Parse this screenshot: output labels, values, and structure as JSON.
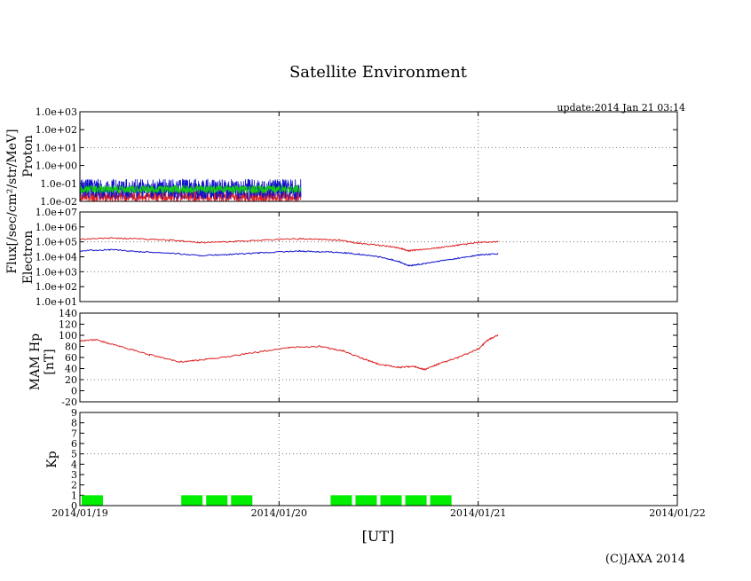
{
  "chart_data": {
    "title": "Satellite Environment",
    "update": "update:2014 Jan 21 03:14",
    "copyright": "(C)JAXA 2014",
    "xlabel": "[UT]",
    "x_ticks": [
      "2014/01/19",
      "2014/01/20",
      "2014/01/21",
      "2014/01/22"
    ],
    "flux_label": "Flux[/sec/cm²/str/MeV]",
    "colors": {
      "red": "#dd2222",
      "blue": "#1111cc",
      "green": "#11cc11",
      "grid": "#777777"
    },
    "panels": [
      {
        "id": "proton",
        "type": "line",
        "ylabel": "Proton",
        "yscale": "log",
        "yticks": [
          "1.0e-02",
          "1.0e-01",
          "1.0e+00",
          "1.0e+01",
          "1.0e+02",
          "1.0e+03"
        ],
        "ylim_exp": [
          -2,
          3
        ],
        "series": [
          {
            "name": "red",
            "color": "#dd2222",
            "note": "noise near 1e-02"
          },
          {
            "name": "blue",
            "color": "#1111cc",
            "note": "noise 1e-02 to 1e-01"
          },
          {
            "name": "green",
            "color": "#11cc11",
            "note": "~5e-02"
          }
        ],
        "x_end_day": 1.11
      },
      {
        "id": "electron",
        "type": "line",
        "ylabel": "Electron",
        "yscale": "log",
        "yticks": [
          "1.0e+01",
          "1.0e+02",
          "1.0e+03",
          "1.0e+04",
          "1.0e+05",
          "1.0e+06",
          "1.0e+07"
        ],
        "ylim_exp": [
          1,
          7
        ],
        "series": [
          {
            "name": "red",
            "color": "#dd2222",
            "x": [
              0.0,
              0.15,
              0.3,
              0.45,
              0.6,
              0.75,
              0.9,
              1.1,
              1.2,
              1.3,
              1.4,
              1.5,
              1.6,
              1.65,
              1.7,
              1.8,
              1.9,
              2.0,
              2.1
            ],
            "y": [
              150000.0,
              180000.0,
              160000.0,
              130000.0,
              90000.0,
              100000.0,
              130000.0,
              160000.0,
              150000.0,
              130000.0,
              80000.0,
              60000.0,
              40000.0,
              25000.0,
              30000.0,
              40000.0,
              60000.0,
              90000.0,
              100000.0
            ]
          },
          {
            "name": "blue",
            "color": "#1111cc",
            "x": [
              0.0,
              0.15,
              0.3,
              0.45,
              0.6,
              0.75,
              0.9,
              1.1,
              1.2,
              1.3,
              1.4,
              1.5,
              1.6,
              1.65,
              1.7,
              1.8,
              1.9,
              2.0,
              2.1
            ],
            "y": [
              25000.0,
              30000.0,
              22000.0,
              18000.0,
              12000.0,
              14000.0,
              18000.0,
              24000.0,
              22000.0,
              20000.0,
              15000.0,
              10000.0,
              5000.0,
              2500.0,
              3000.0,
              5000.0,
              8000.0,
              13000.0,
              16000.0
            ]
          }
        ]
      },
      {
        "id": "mam",
        "type": "line",
        "ylabel": "MAM Hp",
        "ylabel2": "[nT]",
        "yscale": "linear",
        "yticks": [
          "-20",
          "0",
          "20",
          "40",
          "60",
          "80",
          "100",
          "120",
          "140"
        ],
        "ylim": [
          -20,
          140
        ],
        "series": [
          {
            "name": "Hp",
            "color": "#dd2222",
            "x": [
              0.0,
              0.08,
              0.2,
              0.35,
              0.5,
              0.6,
              0.75,
              0.9,
              1.05,
              1.2,
              1.32,
              1.42,
              1.5,
              1.6,
              1.68,
              1.73,
              1.8,
              1.9,
              2.0,
              2.05,
              2.1
            ],
            "y": [
              90,
              92,
              80,
              65,
              52,
              55,
              62,
              70,
              78,
              80,
              72,
              58,
              48,
              42,
              44,
              38,
              48,
              60,
              75,
              92,
              100
            ]
          }
        ]
      },
      {
        "id": "kp",
        "type": "bar",
        "ylabel": "Kp",
        "yscale": "linear",
        "yticks": [
          "0",
          "1",
          "2",
          "3",
          "4",
          "5",
          "6",
          "7",
          "8",
          "9"
        ],
        "ylim": [
          0,
          9
        ],
        "bar_color": "#00ee00",
        "bars": [
          {
            "t": 0.0,
            "v": 1
          },
          {
            "t": 0.5,
            "v": 1
          },
          {
            "t": 0.625,
            "v": 1
          },
          {
            "t": 0.75,
            "v": 1
          },
          {
            "t": 1.25,
            "v": 1
          },
          {
            "t": 1.375,
            "v": 1
          },
          {
            "t": 1.5,
            "v": 1
          },
          {
            "t": 1.625,
            "v": 1
          },
          {
            "t": 1.75,
            "v": 1
          }
        ]
      }
    ],
    "xlim_days": [
      0,
      3
    ]
  }
}
